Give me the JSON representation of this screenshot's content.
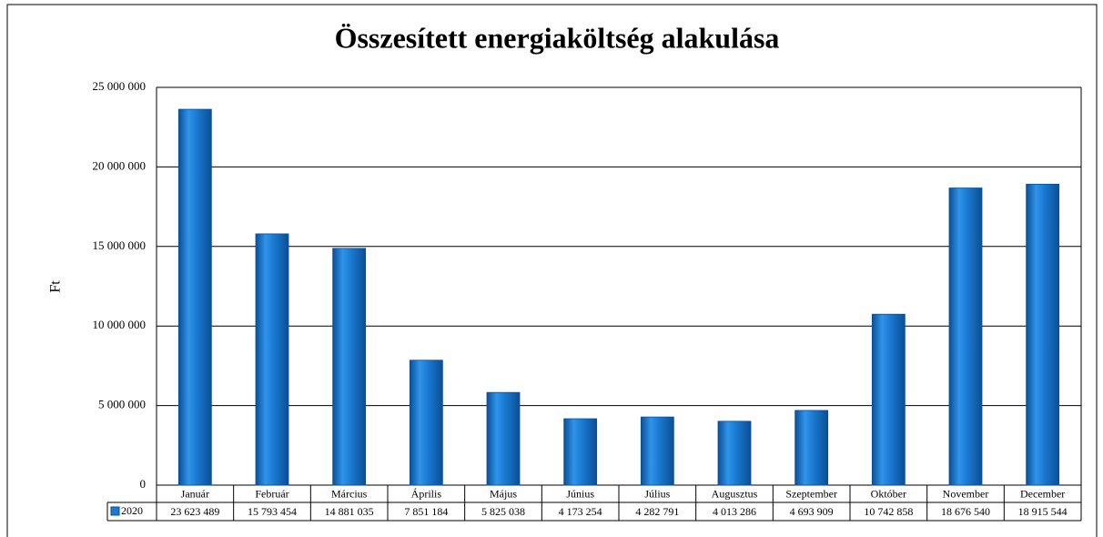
{
  "chart_data": {
    "type": "bar",
    "title": "Összesített energiaköltség alakulása",
    "y_label": "Ft",
    "categories": [
      "Január",
      "Február",
      "Március",
      "Április",
      "Május",
      "Június",
      "Július",
      "Augusztus",
      "Szeptember",
      "Október",
      "November",
      "December"
    ],
    "series": [
      {
        "name": "2020",
        "color": "#1a7ad0",
        "values": [
          23623489,
          15793454,
          14881035,
          7851184,
          5825038,
          4173254,
          4282791,
          4013286,
          4693909,
          10742858,
          18676540,
          18915544
        ],
        "value_labels": [
          "23 623 489",
          "15 793 454",
          "14 881 035",
          "7 851 184",
          "5 825 038",
          "4 173 254",
          "4 282 791",
          "4 013 286",
          "4 693 909",
          "10 742 858",
          "18 676 540",
          "18 915 544"
        ]
      }
    ],
    "ylim": [
      0,
      25000000
    ],
    "yticks": [
      0,
      {
        "value": 5000000,
        "label": "5 000 000"
      },
      {
        "value": 10000000,
        "label": "10 000 000"
      },
      {
        "value": 15000000,
        "label": "15 000 000"
      },
      {
        "value": 20000000,
        "label": "20 000 000"
      },
      {
        "value": 25000000,
        "label": "25 000 000"
      }
    ],
    "grid": true
  }
}
